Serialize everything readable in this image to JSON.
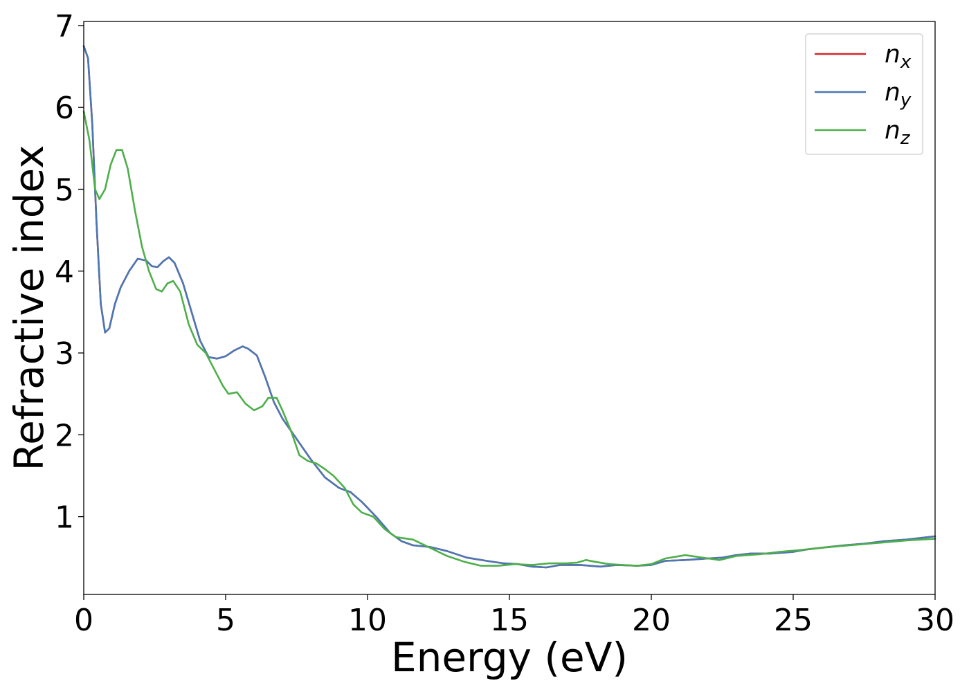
{
  "chart_data": {
    "type": "line",
    "xlabel": "Energy (eV)",
    "ylabel": "Refractive index",
    "xlim": [
      0,
      30
    ],
    "ylim": [
      0.05,
      7.05
    ],
    "x_ticks": [
      0,
      5,
      10,
      15,
      20,
      25,
      30
    ],
    "y_ticks": [
      1,
      2,
      3,
      4,
      5,
      6,
      7
    ],
    "grid": false,
    "legend_position": "top-right",
    "series": [
      {
        "name": "n",
        "subscript": "x",
        "color": "#d62728",
        "points": [
          [
            0,
            6.75
          ],
          [
            0.15,
            6.6
          ],
          [
            0.3,
            5.8
          ],
          [
            0.45,
            4.6
          ],
          [
            0.6,
            3.6
          ],
          [
            0.75,
            3.25
          ],
          [
            0.9,
            3.3
          ],
          [
            1.1,
            3.6
          ],
          [
            1.3,
            3.8
          ],
          [
            1.6,
            4.0
          ],
          [
            1.9,
            4.15
          ],
          [
            2.2,
            4.13
          ],
          [
            2.4,
            4.06
          ],
          [
            2.6,
            4.05
          ],
          [
            2.8,
            4.12
          ],
          [
            3.0,
            4.17
          ],
          [
            3.2,
            4.1
          ],
          [
            3.5,
            3.85
          ],
          [
            3.8,
            3.5
          ],
          [
            4.1,
            3.15
          ],
          [
            4.4,
            2.95
          ],
          [
            4.7,
            2.93
          ],
          [
            5.0,
            2.96
          ],
          [
            5.3,
            3.03
          ],
          [
            5.6,
            3.08
          ],
          [
            5.8,
            3.05
          ],
          [
            6.1,
            2.97
          ],
          [
            6.4,
            2.7
          ],
          [
            6.7,
            2.4
          ],
          [
            7.0,
            2.2
          ],
          [
            7.5,
            1.95
          ],
          [
            8.0,
            1.7
          ],
          [
            8.5,
            1.48
          ],
          [
            9.0,
            1.35
          ],
          [
            9.4,
            1.3
          ],
          [
            9.8,
            1.18
          ],
          [
            10.3,
            1.0
          ],
          [
            10.8,
            0.8
          ],
          [
            11.2,
            0.7
          ],
          [
            11.6,
            0.65
          ],
          [
            12.2,
            0.63
          ],
          [
            12.8,
            0.58
          ],
          [
            13.5,
            0.5
          ],
          [
            14.2,
            0.46
          ],
          [
            14.8,
            0.43
          ],
          [
            15.3,
            0.42
          ],
          [
            15.8,
            0.39
          ],
          [
            16.3,
            0.38
          ],
          [
            16.8,
            0.41
          ],
          [
            17.5,
            0.41
          ],
          [
            18.2,
            0.39
          ],
          [
            18.8,
            0.41
          ],
          [
            19.5,
            0.4
          ],
          [
            20.0,
            0.41
          ],
          [
            20.5,
            0.46
          ],
          [
            21.2,
            0.47
          ],
          [
            22.0,
            0.49
          ],
          [
            22.5,
            0.5
          ],
          [
            23.0,
            0.53
          ],
          [
            23.5,
            0.55
          ],
          [
            24.2,
            0.55
          ],
          [
            25.0,
            0.57
          ],
          [
            25.5,
            0.6
          ],
          [
            26.0,
            0.62
          ],
          [
            26.8,
            0.65
          ],
          [
            27.5,
            0.67
          ],
          [
            28.2,
            0.7
          ],
          [
            29.0,
            0.72
          ],
          [
            30.0,
            0.76
          ]
        ]
      },
      {
        "name": "n",
        "subscript": "y",
        "color": "#4a78b5",
        "points": [
          [
            0,
            6.75
          ],
          [
            0.15,
            6.6
          ],
          [
            0.3,
            5.8
          ],
          [
            0.45,
            4.6
          ],
          [
            0.6,
            3.6
          ],
          [
            0.75,
            3.25
          ],
          [
            0.9,
            3.3
          ],
          [
            1.1,
            3.6
          ],
          [
            1.3,
            3.8
          ],
          [
            1.6,
            4.0
          ],
          [
            1.9,
            4.15
          ],
          [
            2.2,
            4.13
          ],
          [
            2.4,
            4.06
          ],
          [
            2.6,
            4.05
          ],
          [
            2.8,
            4.12
          ],
          [
            3.0,
            4.17
          ],
          [
            3.2,
            4.1
          ],
          [
            3.5,
            3.85
          ],
          [
            3.8,
            3.5
          ],
          [
            4.1,
            3.15
          ],
          [
            4.4,
            2.95
          ],
          [
            4.7,
            2.93
          ],
          [
            5.0,
            2.96
          ],
          [
            5.3,
            3.03
          ],
          [
            5.6,
            3.08
          ],
          [
            5.8,
            3.05
          ],
          [
            6.1,
            2.97
          ],
          [
            6.4,
            2.7
          ],
          [
            6.7,
            2.4
          ],
          [
            7.0,
            2.2
          ],
          [
            7.5,
            1.95
          ],
          [
            8.0,
            1.7
          ],
          [
            8.5,
            1.48
          ],
          [
            9.0,
            1.35
          ],
          [
            9.4,
            1.3
          ],
          [
            9.8,
            1.18
          ],
          [
            10.3,
            1.0
          ],
          [
            10.8,
            0.8
          ],
          [
            11.2,
            0.7
          ],
          [
            11.6,
            0.65
          ],
          [
            12.2,
            0.63
          ],
          [
            12.8,
            0.58
          ],
          [
            13.5,
            0.5
          ],
          [
            14.2,
            0.46
          ],
          [
            14.8,
            0.43
          ],
          [
            15.3,
            0.42
          ],
          [
            15.8,
            0.39
          ],
          [
            16.3,
            0.38
          ],
          [
            16.8,
            0.41
          ],
          [
            17.5,
            0.41
          ],
          [
            18.2,
            0.39
          ],
          [
            18.8,
            0.41
          ],
          [
            19.5,
            0.4
          ],
          [
            20.0,
            0.41
          ],
          [
            20.5,
            0.46
          ],
          [
            21.2,
            0.47
          ],
          [
            22.0,
            0.49
          ],
          [
            22.5,
            0.5
          ],
          [
            23.0,
            0.53
          ],
          [
            23.5,
            0.55
          ],
          [
            24.2,
            0.55
          ],
          [
            25.0,
            0.57
          ],
          [
            25.5,
            0.6
          ],
          [
            26.0,
            0.62
          ],
          [
            26.8,
            0.65
          ],
          [
            27.5,
            0.67
          ],
          [
            28.2,
            0.7
          ],
          [
            29.0,
            0.72
          ],
          [
            30.0,
            0.76
          ]
        ]
      },
      {
        "name": "n",
        "subscript": "z",
        "color": "#4daf4a",
        "points": [
          [
            0,
            5.95
          ],
          [
            0.2,
            5.6
          ],
          [
            0.4,
            5.0
          ],
          [
            0.55,
            4.88
          ],
          [
            0.75,
            5.0
          ],
          [
            0.95,
            5.3
          ],
          [
            1.15,
            5.48
          ],
          [
            1.35,
            5.48
          ],
          [
            1.55,
            5.25
          ],
          [
            1.8,
            4.75
          ],
          [
            2.05,
            4.3
          ],
          [
            2.3,
            4.0
          ],
          [
            2.55,
            3.78
          ],
          [
            2.75,
            3.75
          ],
          [
            2.95,
            3.85
          ],
          [
            3.15,
            3.88
          ],
          [
            3.4,
            3.75
          ],
          [
            3.7,
            3.35
          ],
          [
            4.0,
            3.1
          ],
          [
            4.3,
            3.0
          ],
          [
            4.6,
            2.8
          ],
          [
            4.9,
            2.6
          ],
          [
            5.1,
            2.5
          ],
          [
            5.4,
            2.52
          ],
          [
            5.7,
            2.38
          ],
          [
            6.0,
            2.3
          ],
          [
            6.3,
            2.35
          ],
          [
            6.5,
            2.45
          ],
          [
            6.8,
            2.45
          ],
          [
            7.0,
            2.3
          ],
          [
            7.3,
            2.05
          ],
          [
            7.6,
            1.75
          ],
          [
            7.9,
            1.68
          ],
          [
            8.2,
            1.65
          ],
          [
            8.5,
            1.58
          ],
          [
            8.8,
            1.5
          ],
          [
            9.2,
            1.35
          ],
          [
            9.5,
            1.15
          ],
          [
            9.8,
            1.05
          ],
          [
            10.2,
            1.0
          ],
          [
            10.6,
            0.85
          ],
          [
            11.0,
            0.75
          ],
          [
            11.6,
            0.72
          ],
          [
            12.2,
            0.62
          ],
          [
            12.8,
            0.52
          ],
          [
            13.4,
            0.45
          ],
          [
            14.0,
            0.4
          ],
          [
            14.6,
            0.4
          ],
          [
            15.2,
            0.42
          ],
          [
            15.8,
            0.41
          ],
          [
            16.4,
            0.43
          ],
          [
            17.0,
            0.43
          ],
          [
            17.4,
            0.44
          ],
          [
            17.7,
            0.47
          ],
          [
            18.0,
            0.45
          ],
          [
            18.5,
            0.42
          ],
          [
            19.0,
            0.41
          ],
          [
            19.5,
            0.4
          ],
          [
            20.0,
            0.42
          ],
          [
            20.5,
            0.49
          ],
          [
            21.2,
            0.53
          ],
          [
            21.8,
            0.5
          ],
          [
            22.4,
            0.47
          ],
          [
            23.0,
            0.52
          ],
          [
            23.8,
            0.54
          ],
          [
            24.5,
            0.57
          ],
          [
            25.2,
            0.59
          ],
          [
            26.0,
            0.62
          ],
          [
            27.0,
            0.65
          ],
          [
            28.0,
            0.68
          ],
          [
            29.0,
            0.71
          ],
          [
            30.0,
            0.73
          ]
        ]
      }
    ]
  }
}
